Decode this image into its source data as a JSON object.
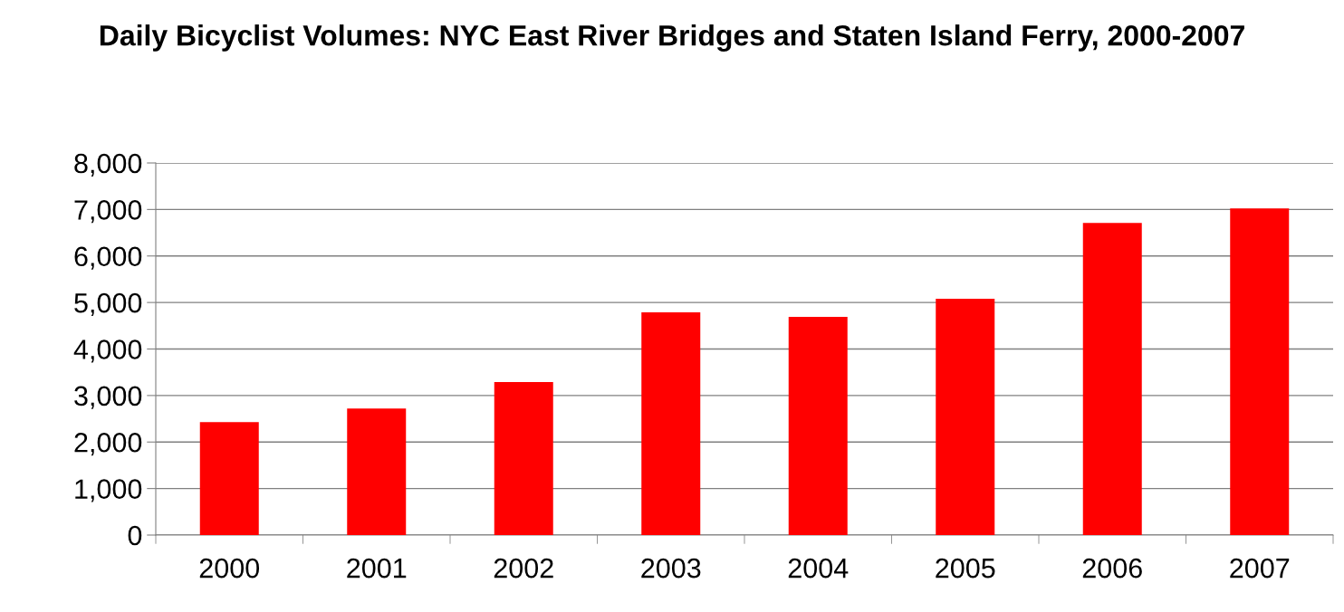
{
  "chart_data": {
    "type": "bar",
    "title": "Daily Bicyclist Volumes: NYC East River Bridges and Staten Island Ferry, 2000-2007",
    "categories": [
      "2000",
      "2001",
      "2002",
      "2003",
      "2004",
      "2005",
      "2006",
      "2007"
    ],
    "values": [
      2430,
      2720,
      3290,
      4790,
      4690,
      5080,
      6710,
      7020
    ],
    "color": "#ff0000",
    "ylim": [
      0,
      8000
    ],
    "yticks": [
      {
        "value": 0,
        "label": "0"
      },
      {
        "value": 1000,
        "label": "1,000"
      },
      {
        "value": 2000,
        "label": "2,000"
      },
      {
        "value": 3000,
        "label": "3,000"
      },
      {
        "value": 4000,
        "label": "4,000"
      },
      {
        "value": 5000,
        "label": "5,000"
      },
      {
        "value": 6000,
        "label": "6,000"
      },
      {
        "value": 7000,
        "label": "7,000"
      },
      {
        "value": 8000,
        "label": "8,000"
      }
    ],
    "grid": "y"
  }
}
